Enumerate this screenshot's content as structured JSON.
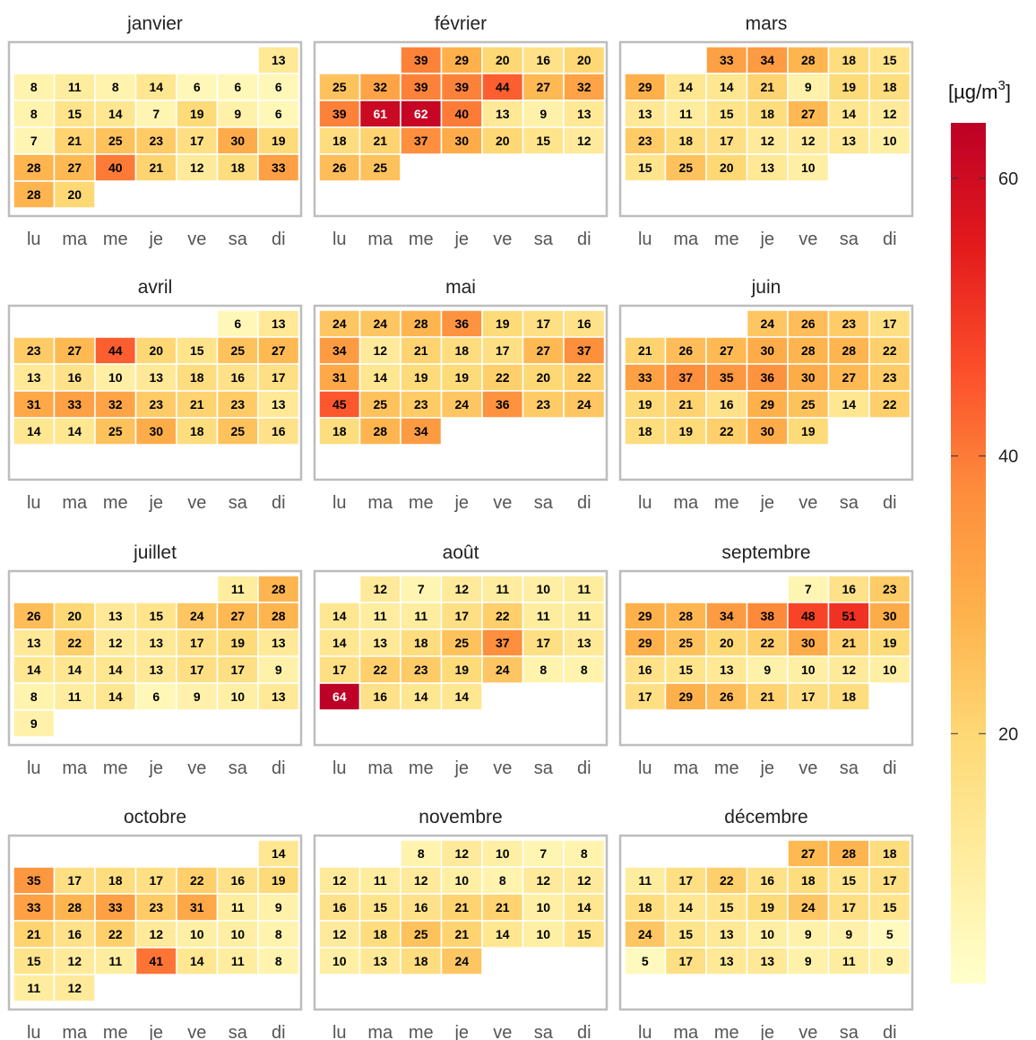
{
  "chart_data": {
    "type": "heatmap",
    "unit_label": "[µg/m",
    "unit_superscript": "3",
    "unit_close": "]",
    "weekday_labels": [
      "lu",
      "ma",
      "me",
      "je",
      "ve",
      "sa",
      "di"
    ],
    "colorbar": {
      "min": 2,
      "max": 64,
      "ticks": [
        20,
        40,
        60
      ]
    },
    "colors": {
      "scale": [
        "#ffffcc",
        "#ffeda0",
        "#fed976",
        "#feb24c",
        "#fd8d3c",
        "#fc4e2a",
        "#e31a1c",
        "#bd0026"
      ],
      "frame": "#bdbdbd",
      "dark_text": "#000000",
      "light_text": "#ffffff"
    },
    "months": [
      {
        "name": "janvier",
        "start": 6,
        "values": [
          13,
          8,
          11,
          8,
          14,
          6,
          6,
          6,
          8,
          15,
          14,
          7,
          19,
          9,
          6,
          7,
          21,
          25,
          23,
          17,
          30,
          19,
          28,
          27,
          40,
          21,
          12,
          18,
          33,
          28,
          20
        ]
      },
      {
        "name": "février",
        "start": 2,
        "values": [
          39,
          29,
          20,
          16,
          20,
          25,
          32,
          39,
          39,
          44,
          27,
          32,
          39,
          61,
          62,
          40,
          13,
          9,
          13,
          18,
          21,
          37,
          30,
          20,
          15,
          12,
          26,
          25
        ]
      },
      {
        "name": "mars",
        "start": 2,
        "values": [
          33,
          34,
          28,
          18,
          15,
          29,
          14,
          14,
          21,
          9,
          19,
          18,
          13,
          11,
          15,
          18,
          27,
          14,
          12,
          23,
          18,
          17,
          12,
          12,
          13,
          10,
          15,
          25,
          20,
          13,
          10
        ]
      },
      {
        "name": "avril",
        "start": 5,
        "values": [
          6,
          13,
          23,
          27,
          44,
          20,
          15,
          25,
          27,
          13,
          16,
          10,
          13,
          18,
          16,
          17,
          31,
          33,
          32,
          23,
          21,
          23,
          13,
          14,
          14,
          25,
          30,
          18,
          25,
          16
        ]
      },
      {
        "name": "mai",
        "start": 0,
        "values": [
          24,
          24,
          28,
          36,
          19,
          17,
          16,
          34,
          12,
          21,
          18,
          17,
          27,
          37,
          31,
          14,
          19,
          19,
          22,
          20,
          22,
          45,
          25,
          23,
          24,
          36,
          23,
          24,
          18,
          28,
          34
        ]
      },
      {
        "name": "juin",
        "start": 3,
        "values": [
          24,
          26,
          23,
          17,
          21,
          26,
          27,
          30,
          28,
          28,
          22,
          33,
          37,
          35,
          36,
          30,
          27,
          23,
          19,
          21,
          16,
          29,
          25,
          14,
          22,
          18,
          19,
          22,
          30,
          19
        ]
      },
      {
        "name": "juillet",
        "start": 5,
        "values": [
          11,
          28,
          26,
          20,
          13,
          15,
          24,
          27,
          28,
          13,
          22,
          12,
          13,
          17,
          19,
          13,
          14,
          14,
          14,
          13,
          17,
          17,
          9,
          8,
          11,
          14,
          6,
          9,
          10,
          13,
          9
        ]
      },
      {
        "name": "août",
        "start": 1,
        "values": [
          12,
          7,
          12,
          11,
          10,
          11,
          14,
          11,
          11,
          17,
          22,
          11,
          11,
          14,
          13,
          18,
          25,
          37,
          17,
          13,
          17,
          22,
          23,
          19,
          24,
          8,
          8,
          64,
          16,
          14,
          14
        ]
      },
      {
        "name": "septembre",
        "start": 4,
        "values": [
          7,
          16,
          23,
          29,
          28,
          34,
          38,
          48,
          51,
          30,
          29,
          25,
          20,
          22,
          30,
          21,
          19,
          16,
          15,
          13,
          9,
          10,
          12,
          10,
          17,
          29,
          26,
          21,
          17,
          18
        ]
      },
      {
        "name": "octobre",
        "start": 6,
        "values": [
          14,
          35,
          17,
          18,
          17,
          22,
          16,
          19,
          33,
          28,
          33,
          23,
          31,
          11,
          9,
          21,
          16,
          22,
          12,
          10,
          10,
          8,
          15,
          12,
          11,
          41,
          14,
          11,
          8,
          11,
          12
        ]
      },
      {
        "name": "novembre",
        "start": 2,
        "values": [
          8,
          12,
          10,
          7,
          8,
          12,
          11,
          12,
          10,
          8,
          12,
          12,
          16,
          15,
          16,
          21,
          21,
          10,
          14,
          12,
          18,
          25,
          21,
          14,
          10,
          15,
          10,
          13,
          18,
          24
        ]
      },
      {
        "name": "décembre",
        "start": 4,
        "values": [
          27,
          28,
          18,
          11,
          17,
          22,
          16,
          18,
          15,
          17,
          18,
          14,
          15,
          19,
          24,
          17,
          15,
          24,
          15,
          13,
          10,
          9,
          9,
          5,
          5,
          17,
          13,
          13,
          9,
          11,
          9
        ]
      }
    ]
  }
}
